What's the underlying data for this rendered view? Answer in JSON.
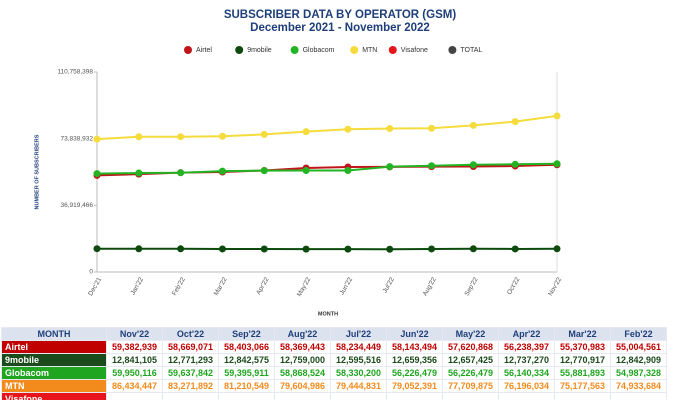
{
  "chart_data": {
    "type": "line",
    "title": "SUBSCRIBER DATA BY OPERATOR (GSM)",
    "subtitle": "December 2021 - November 2022",
    "y_label": "NUMBER OF SUBSCRIBERS",
    "x_label": "MONTH",
    "categories": [
      "Dec'21",
      "Jan'22",
      "Feb'22",
      "Mar'22",
      "Apr'22",
      "May'22",
      "Jun'22",
      "Jul'22",
      "Aug'22",
      "Sep'22",
      "Oct'22",
      "Nov'22"
    ],
    "ylim": [
      0,
      110758398
    ],
    "yticks": [
      0,
      {
        "value": 36919466,
        "label": "36,919,466"
      },
      {
        "value": 73838932,
        "label": "73,838,932"
      },
      {
        "value": 110758398,
        "label": "110,758,398"
      }
    ],
    "grid": false,
    "legend": "top",
    "series": [
      {
        "name": "Airtel",
        "color": "#c0161b",
        "values": [
          53500000,
          54200000,
          55004561,
          55370983,
          56238397,
          57620868,
          58143494,
          58234449,
          58369443,
          58403066,
          58669071,
          59382939
        ]
      },
      {
        "name": "9mobile",
        "color": "#0d4a0d",
        "values": [
          12900000,
          12850000,
          12842909,
          12770917,
          12737270,
          12657425,
          12659356,
          12595516,
          12759000,
          12842575,
          12771293,
          12841105
        ]
      },
      {
        "name": "Globacom",
        "color": "#22b422",
        "values": [
          54500000,
          54800000,
          54987328,
          55881893,
          56140334,
          56226479,
          56226479,
          58330200,
          58868524,
          59395911,
          59637842,
          59950116
        ]
      },
      {
        "name": "MTN",
        "color": "#f5dc3c",
        "values": [
          73600000,
          74900000,
          74933684,
          75177563,
          76196034,
          77709875,
          79052391,
          79444831,
          79604986,
          81210549,
          83271892,
          86434447
        ]
      },
      {
        "name": "Visafone",
        "color": "#e8141b",
        "values": [
          null,
          null,
          null,
          null,
          null,
          null,
          null,
          null,
          null,
          null,
          null,
          null
        ]
      },
      {
        "name": "TOTAL",
        "color": "#444444",
        "values": [
          null,
          null,
          null,
          null,
          null,
          null,
          null,
          null,
          null,
          null,
          null,
          null
        ]
      }
    ]
  },
  "table": {
    "header": [
      "MONTH",
      "Nov'22",
      "Oct'22",
      "Sep'22",
      "Aug'22",
      "Jul'22",
      "Jun'22",
      "May'22",
      "Apr'22",
      "Mar'22",
      "Feb'22"
    ],
    "rows": [
      {
        "label": "Airtel",
        "color": "#c00000",
        "values": [
          "59,382,939",
          "58,669,071",
          "58,403,066",
          "58,369,443",
          "58,234,449",
          "58,143,494",
          "57,620,868",
          "56,238,397",
          "55,370,983",
          "55,004,561"
        ]
      },
      {
        "label": "9mobile",
        "color": "#1b4a1b",
        "values": [
          "12,841,105",
          "12,771,293",
          "12,842,575",
          "12,759,000",
          "12,595,516",
          "12,659,356",
          "12,657,425",
          "12,737,270",
          "12,770,917",
          "12,842,909"
        ]
      },
      {
        "label": "Globacom",
        "color": "#1fa51f",
        "values": [
          "59,950,116",
          "59,637,842",
          "59,395,911",
          "58,868,524",
          "58,330,200",
          "56,226,479",
          "56,226,479",
          "56,140,334",
          "55,881,893",
          "54,987,328"
        ]
      },
      {
        "label": "MTN",
        "color": "#f28a1c",
        "values": [
          "86,434,447",
          "83,271,892",
          "81,210,549",
          "79,604,986",
          "79,444,831",
          "79,052,391",
          "77,709,875",
          "76,196,034",
          "75,177,563",
          "74,933,684"
        ]
      },
      {
        "label": "Visafone",
        "color": "#e8141b",
        "values": []
      }
    ]
  }
}
